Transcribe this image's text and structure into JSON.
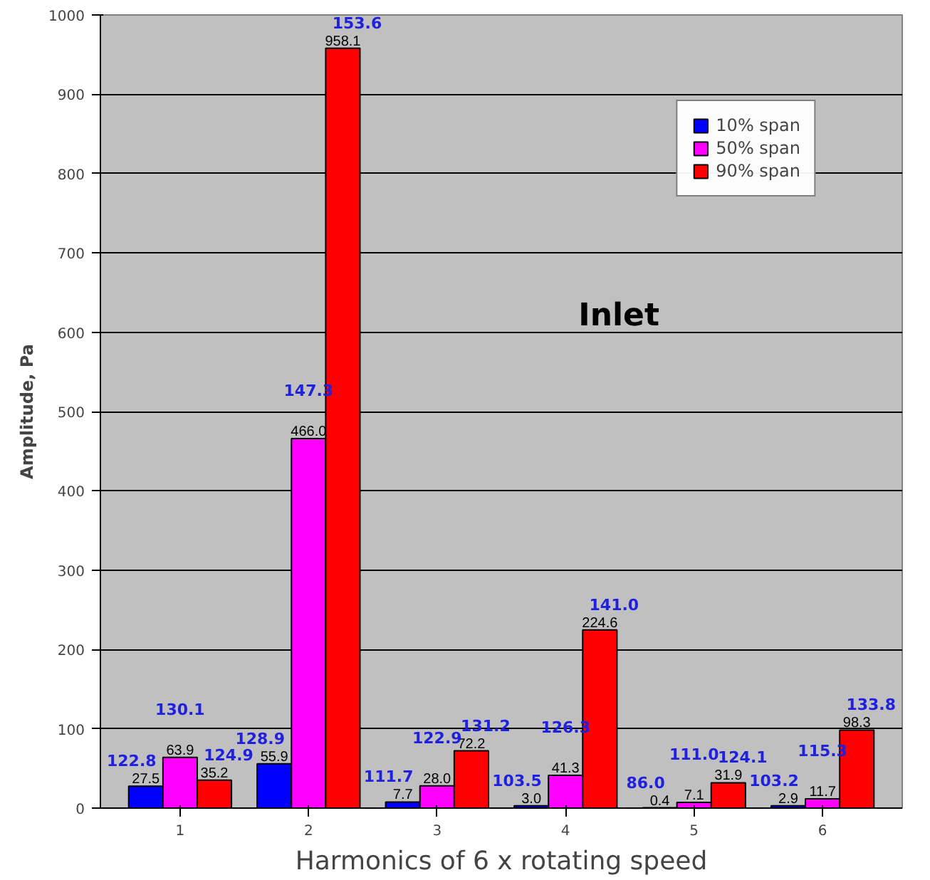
{
  "chart_data": {
    "type": "bar",
    "xlabel": "Harmonics of 6 x rotating speed",
    "ylabel": "Amplitude, Pa",
    "categories": [
      "1",
      "2",
      "3",
      "4",
      "5",
      "6"
    ],
    "series": [
      {
        "name": "10% span",
        "color": "#0000ff",
        "values": [
          27.5,
          55.9,
          7.7,
          3.0,
          0.4,
          2.9
        ],
        "value_labels": [
          "27.5",
          "55.9",
          "7.7",
          "3.0",
          "0.4",
          "2.9"
        ]
      },
      {
        "name": "50% span",
        "color": "#ff00ff",
        "values": [
          63.9,
          466.0,
          28.0,
          41.3,
          7.1,
          11.7
        ],
        "value_labels": [
          "63.9",
          "466.0",
          "28.0",
          "41.3",
          "7.1",
          "11.7"
        ]
      },
      {
        "name": "90% span",
        "color": "#ff0000",
        "values": [
          35.2,
          958.1,
          72.2,
          224.6,
          31.9,
          98.3
        ],
        "value_labels": [
          "35.2",
          "958.1",
          "72.2",
          "224.6",
          "31.9",
          "98.3"
        ]
      }
    ],
    "ylim": [
      0,
      1000
    ],
    "yticks": [
      0,
      100,
      200,
      300,
      400,
      500,
      600,
      700,
      800,
      900,
      1000
    ],
    "grid": "y",
    "legend": "top right",
    "annotations": [
      "Inlet",
      "122.8",
      "130.1",
      "124.9",
      "128.9",
      "147.3",
      "153.6",
      "111.7",
      "122.9",
      "131.2",
      "103.5",
      "126.3",
      "141.0",
      "86.0",
      "111.0",
      "124.1",
      "103.2",
      "115.3",
      "133.8"
    ]
  }
}
